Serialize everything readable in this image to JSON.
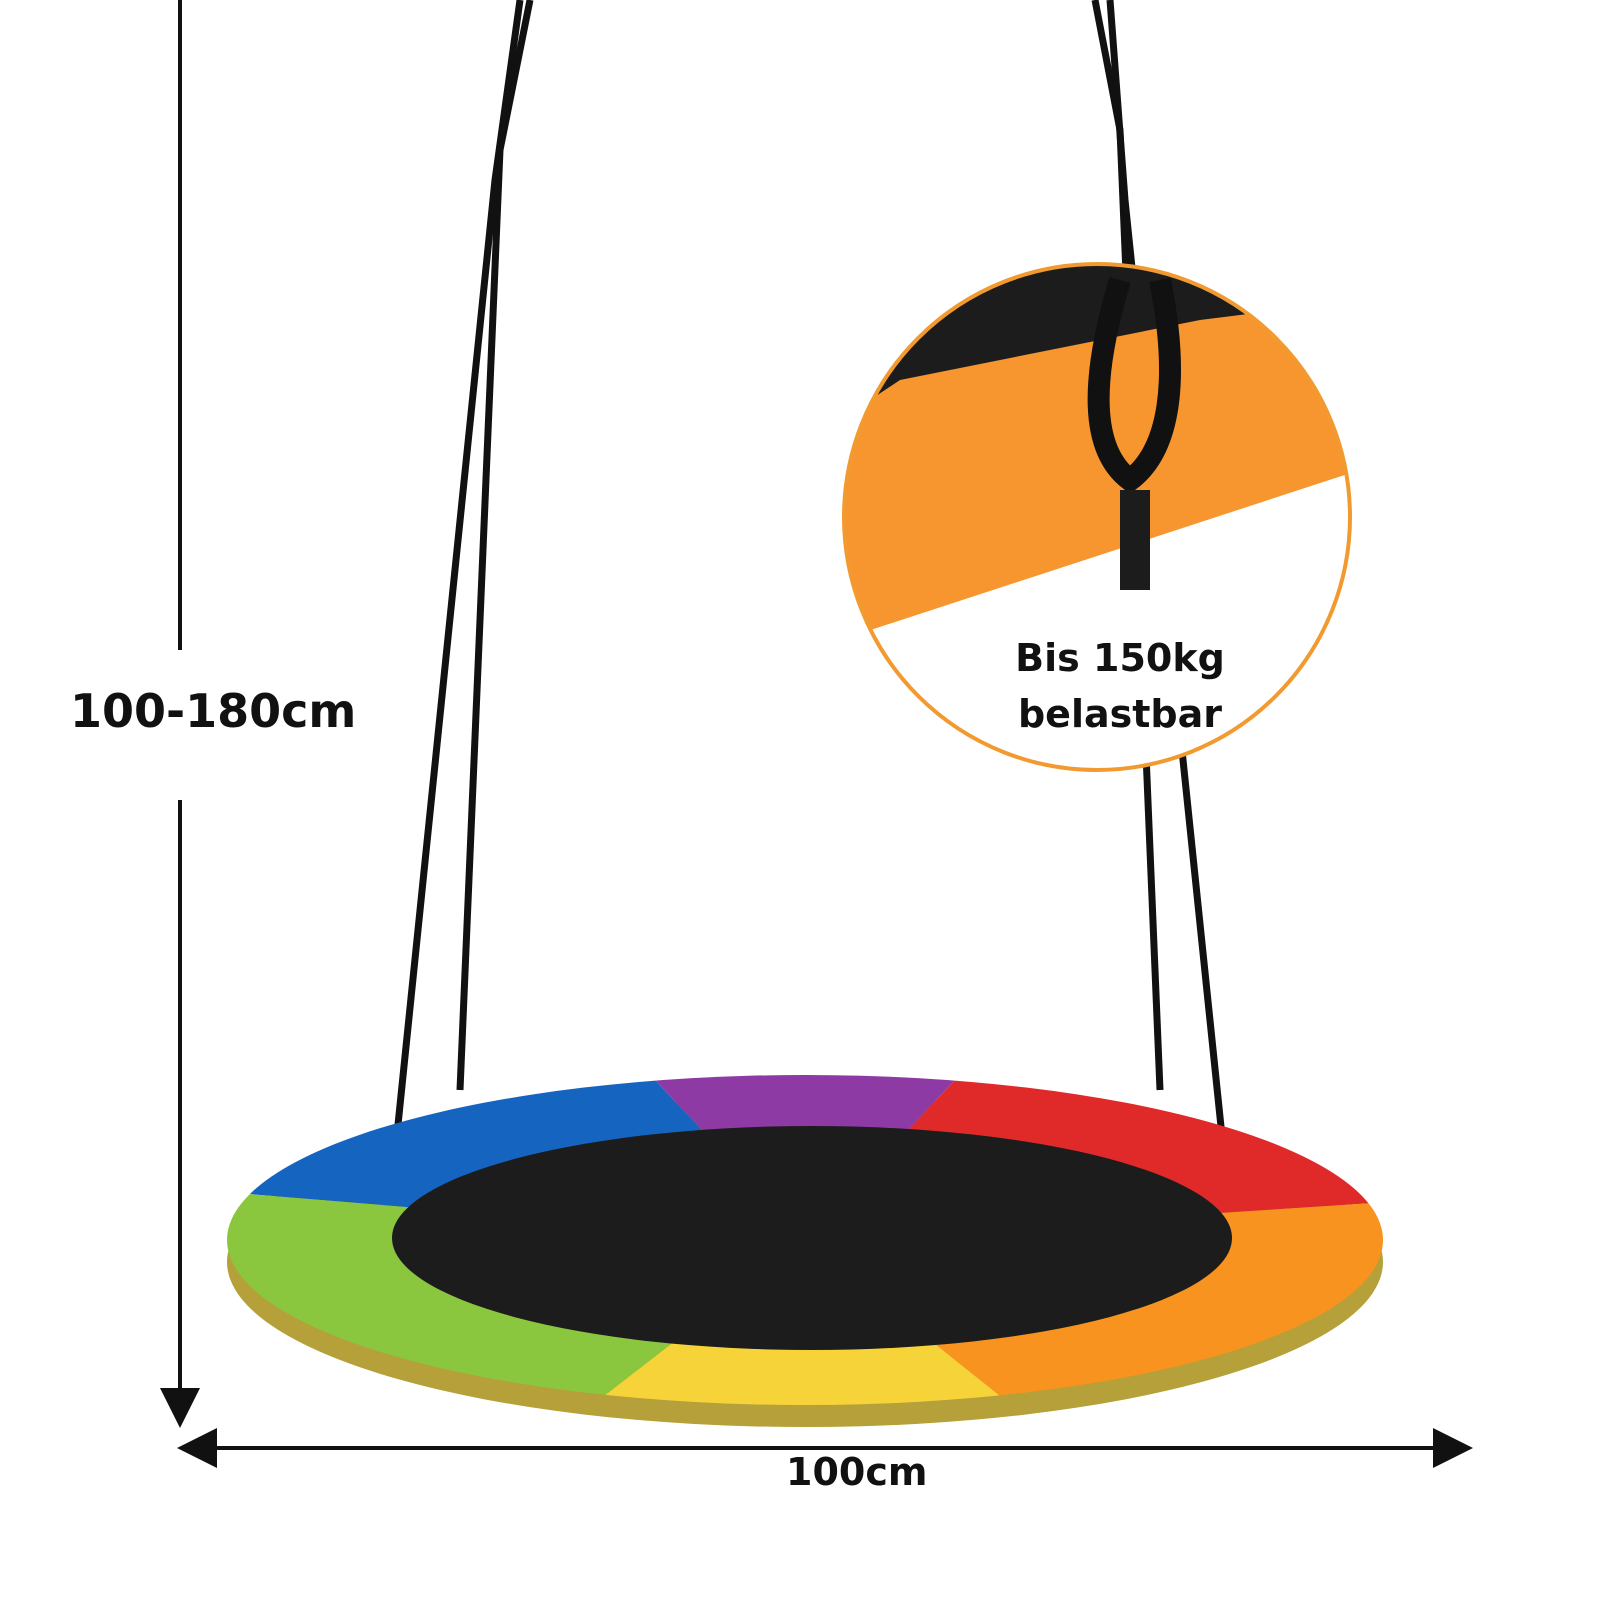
{
  "dimensions": {
    "height_label": "100-180cm",
    "width_label": "100cm"
  },
  "inset": {
    "line1": "Bis 150kg",
    "line2": "belastbar"
  },
  "colors": {
    "blue": "#1565c0",
    "purple": "#8e3aa4",
    "red": "#e02a2a",
    "orange": "#f7931e",
    "yellow": "#f7d33a",
    "green": "#8bc63f",
    "seat": "#1c1c1c",
    "inset_border": "#f29a30"
  }
}
